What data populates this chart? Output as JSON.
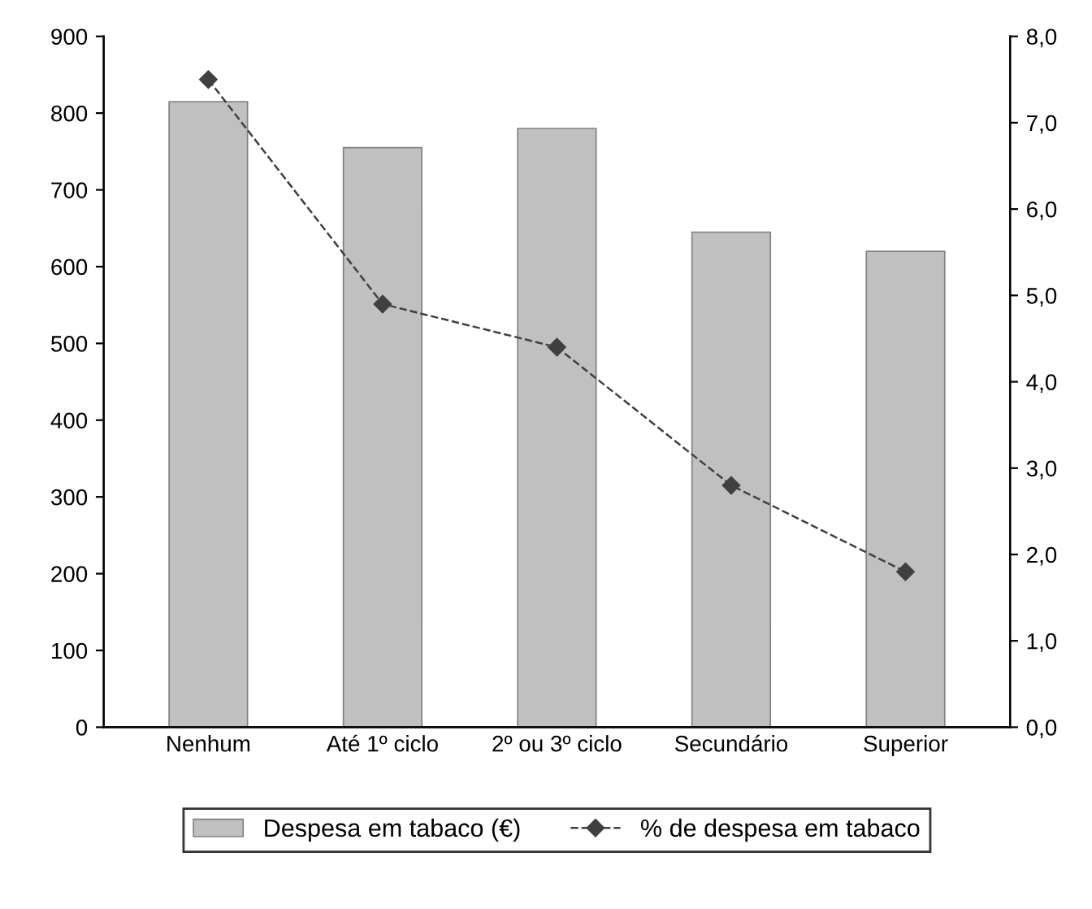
{
  "chart_data": {
    "type": "bar",
    "categories": [
      "Nenhum",
      "Até 1º ciclo",
      "2º ou 3º ciclo",
      "Secundário",
      "Superior"
    ],
    "series": [
      {
        "name": "Despesa em tabaco (€)",
        "color": "#c0c0c0",
        "values": [
          815,
          755,
          780,
          645,
          620
        ]
      },
      {
        "name": "% de despesa em tabaco",
        "type": "line",
        "axis": "y2",
        "color": "#404040",
        "marker": "diamond",
        "line_style": "dashed",
        "values": [
          7.5,
          4.9,
          4.4,
          2.8,
          1.8
        ]
      }
    ],
    "ylim": [
      0,
      900
    ],
    "yticks": [
      0,
      100,
      200,
      300,
      400,
      500,
      600,
      700,
      800,
      900
    ],
    "y2lim": [
      0,
      8
    ],
    "y2ticks": [
      {
        "value": 0,
        "label": "0,0"
      },
      {
        "value": 1,
        "label": "1,0"
      },
      {
        "value": 2,
        "label": "2,0"
      },
      {
        "value": 3,
        "label": "3,0"
      },
      {
        "value": 4,
        "label": "4,0"
      },
      {
        "value": 5,
        "label": "5,0"
      },
      {
        "value": 6,
        "label": "6,0"
      },
      {
        "value": 7,
        "label": "7,0"
      },
      {
        "value": 8,
        "label": "8,0"
      }
    ],
    "grid": false,
    "legend": "bottom"
  }
}
